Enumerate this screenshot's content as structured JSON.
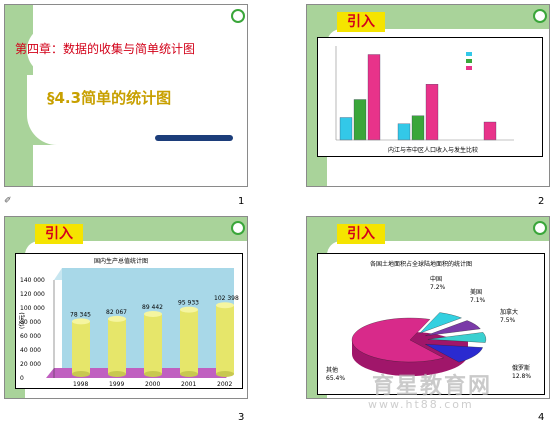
{
  "slides": [
    {
      "number": "1",
      "chapter_title": "第四章：数据的收集与简单统计图",
      "section_title": "§4.3简单的统计图"
    },
    {
      "number": "2",
      "tag": "引入",
      "chart_title": "内江与市中区人口收入与发生比较"
    },
    {
      "number": "3",
      "tag": "引入",
      "chart_title": "国内生产总值统计图",
      "ylabel": "(亿元)",
      "yticks": [
        "140 000",
        "120 000",
        "100 000",
        "80 000",
        "60 000",
        "40 000",
        "20 000",
        "0"
      ]
    },
    {
      "number": "4",
      "tag": "引入",
      "chart_title": "各国土地面积占全球陆地面积的统计图",
      "labels": [
        {
          "name": "中国",
          "value": "7.2%"
        },
        {
          "name": "美国",
          "value": "7.1%"
        },
        {
          "name": "加拿大",
          "value": "7.5%"
        },
        {
          "name": "俄罗斯",
          "value": "12.8%"
        },
        {
          "name": "其他",
          "value": "65.4%"
        }
      ]
    }
  ],
  "nav_icon": "slide-nav-icon",
  "watermark": {
    "line1": "育星教育网",
    "line2": "www.ht88.com"
  },
  "chart_data": [
    {
      "type": "bar",
      "title": "内江与市中区人口收入与发生比较",
      "categories": [
        "",
        "",
        ""
      ],
      "series": [
        {
          "name": "",
          "color": "#33c8e8",
          "values": [
            25,
            18,
            0
          ]
        },
        {
          "name": "",
          "color": "#3aa63a",
          "values": [
            45,
            27,
            0
          ]
        },
        {
          "name": "",
          "color": "#e8338a",
          "values": [
            95,
            62,
            20
          ]
        }
      ],
      "ylim": [
        0,
        100
      ]
    },
    {
      "type": "bar",
      "title": "国内生产总值统计图",
      "categories": [
        "1998",
        "1999",
        "2000",
        "2001",
        "2002"
      ],
      "values": [
        78345,
        82067,
        89442,
        95933,
        102398
      ],
      "data_labels": [
        "78 345",
        "82 067",
        "89 442",
        "95 933",
        "102 398"
      ],
      "ylabel": "(亿元)",
      "ylim": [
        0,
        140000
      ],
      "colors": {
        "bar": "#e6e66a",
        "wall": "#a8d8e8",
        "floor": "#c060c0"
      }
    },
    {
      "type": "pie",
      "title": "各国土地面积占全球陆地面积的统计图",
      "categories": [
        "中国",
        "美国",
        "加拿大",
        "俄罗斯",
        "其他"
      ],
      "values": [
        7.2,
        7.1,
        7.5,
        12.8,
        65.4
      ],
      "colors": [
        "#33d0e0",
        "#7a3aa8",
        "#3ad0d0",
        "#2a2ad0",
        "#d82a8a"
      ]
    }
  ]
}
